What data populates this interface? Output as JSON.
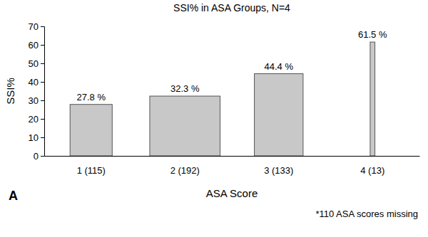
{
  "chart_data": {
    "type": "bar",
    "title": "SSI% in ASA Groups, N=4",
    "x_label": "ASA Score",
    "y_label": "SSI%",
    "categories": [
      "1 (115)",
      "2 (192)",
      "3 (133)",
      "4 (13)"
    ],
    "values": [
      27.8,
      32.3,
      44.4,
      61.5
    ],
    "value_labels": [
      "27.8 %",
      "32.3 %",
      "44.4 %",
      "61.5 %"
    ],
    "widths": [
      115,
      192,
      133,
      13
    ],
    "color": "#c8c8c8",
    "ylim": [
      0,
      70
    ],
    "yticks": [
      0,
      10,
      20,
      30,
      40,
      50,
      60,
      70
    ],
    "grid": false,
    "data_labels": true,
    "annotations": [
      "A",
      "*110 ASA scores missing"
    ]
  }
}
